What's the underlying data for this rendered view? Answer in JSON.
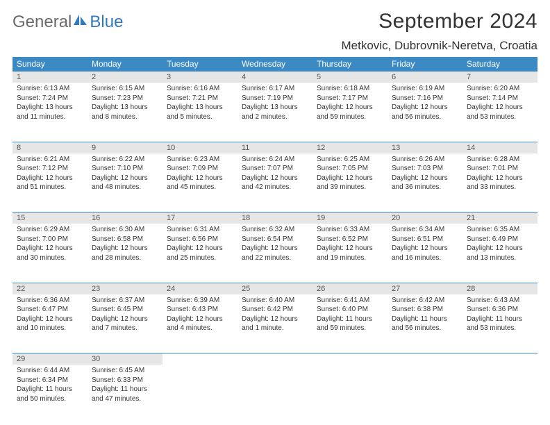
{
  "brand": {
    "part1": "General",
    "part2": "Blue"
  },
  "title": "September 2024",
  "location": "Metkovic, Dubrovnik-Neretva, Croatia",
  "header_bg": "#3b8ac4",
  "daynum_bg": "#e6e6e6",
  "weekdays": [
    "Sunday",
    "Monday",
    "Tuesday",
    "Wednesday",
    "Thursday",
    "Friday",
    "Saturday"
  ],
  "weeks": [
    [
      {
        "n": "1",
        "sr": "6:13 AM",
        "ss": "7:24 PM",
        "dl": "13 hours and 11 minutes."
      },
      {
        "n": "2",
        "sr": "6:15 AM",
        "ss": "7:23 PM",
        "dl": "13 hours and 8 minutes."
      },
      {
        "n": "3",
        "sr": "6:16 AM",
        "ss": "7:21 PM",
        "dl": "13 hours and 5 minutes."
      },
      {
        "n": "4",
        "sr": "6:17 AM",
        "ss": "7:19 PM",
        "dl": "13 hours and 2 minutes."
      },
      {
        "n": "5",
        "sr": "6:18 AM",
        "ss": "7:17 PM",
        "dl": "12 hours and 59 minutes."
      },
      {
        "n": "6",
        "sr": "6:19 AM",
        "ss": "7:16 PM",
        "dl": "12 hours and 56 minutes."
      },
      {
        "n": "7",
        "sr": "6:20 AM",
        "ss": "7:14 PM",
        "dl": "12 hours and 53 minutes."
      }
    ],
    [
      {
        "n": "8",
        "sr": "6:21 AM",
        "ss": "7:12 PM",
        "dl": "12 hours and 51 minutes."
      },
      {
        "n": "9",
        "sr": "6:22 AM",
        "ss": "7:10 PM",
        "dl": "12 hours and 48 minutes."
      },
      {
        "n": "10",
        "sr": "6:23 AM",
        "ss": "7:09 PM",
        "dl": "12 hours and 45 minutes."
      },
      {
        "n": "11",
        "sr": "6:24 AM",
        "ss": "7:07 PM",
        "dl": "12 hours and 42 minutes."
      },
      {
        "n": "12",
        "sr": "6:25 AM",
        "ss": "7:05 PM",
        "dl": "12 hours and 39 minutes."
      },
      {
        "n": "13",
        "sr": "6:26 AM",
        "ss": "7:03 PM",
        "dl": "12 hours and 36 minutes."
      },
      {
        "n": "14",
        "sr": "6:28 AM",
        "ss": "7:01 PM",
        "dl": "12 hours and 33 minutes."
      }
    ],
    [
      {
        "n": "15",
        "sr": "6:29 AM",
        "ss": "7:00 PM",
        "dl": "12 hours and 30 minutes."
      },
      {
        "n": "16",
        "sr": "6:30 AM",
        "ss": "6:58 PM",
        "dl": "12 hours and 28 minutes."
      },
      {
        "n": "17",
        "sr": "6:31 AM",
        "ss": "6:56 PM",
        "dl": "12 hours and 25 minutes."
      },
      {
        "n": "18",
        "sr": "6:32 AM",
        "ss": "6:54 PM",
        "dl": "12 hours and 22 minutes."
      },
      {
        "n": "19",
        "sr": "6:33 AM",
        "ss": "6:52 PM",
        "dl": "12 hours and 19 minutes."
      },
      {
        "n": "20",
        "sr": "6:34 AM",
        "ss": "6:51 PM",
        "dl": "12 hours and 16 minutes."
      },
      {
        "n": "21",
        "sr": "6:35 AM",
        "ss": "6:49 PM",
        "dl": "12 hours and 13 minutes."
      }
    ],
    [
      {
        "n": "22",
        "sr": "6:36 AM",
        "ss": "6:47 PM",
        "dl": "12 hours and 10 minutes."
      },
      {
        "n": "23",
        "sr": "6:37 AM",
        "ss": "6:45 PM",
        "dl": "12 hours and 7 minutes."
      },
      {
        "n": "24",
        "sr": "6:39 AM",
        "ss": "6:43 PM",
        "dl": "12 hours and 4 minutes."
      },
      {
        "n": "25",
        "sr": "6:40 AM",
        "ss": "6:42 PM",
        "dl": "12 hours and 1 minute."
      },
      {
        "n": "26",
        "sr": "6:41 AM",
        "ss": "6:40 PM",
        "dl": "11 hours and 59 minutes."
      },
      {
        "n": "27",
        "sr": "6:42 AM",
        "ss": "6:38 PM",
        "dl": "11 hours and 56 minutes."
      },
      {
        "n": "28",
        "sr": "6:43 AM",
        "ss": "6:36 PM",
        "dl": "11 hours and 53 minutes."
      }
    ],
    [
      {
        "n": "29",
        "sr": "6:44 AM",
        "ss": "6:34 PM",
        "dl": "11 hours and 50 minutes."
      },
      {
        "n": "30",
        "sr": "6:45 AM",
        "ss": "6:33 PM",
        "dl": "11 hours and 47 minutes."
      },
      null,
      null,
      null,
      null,
      null
    ]
  ],
  "labels": {
    "sunrise": "Sunrise:",
    "sunset": "Sunset:",
    "daylight": "Daylight:"
  }
}
